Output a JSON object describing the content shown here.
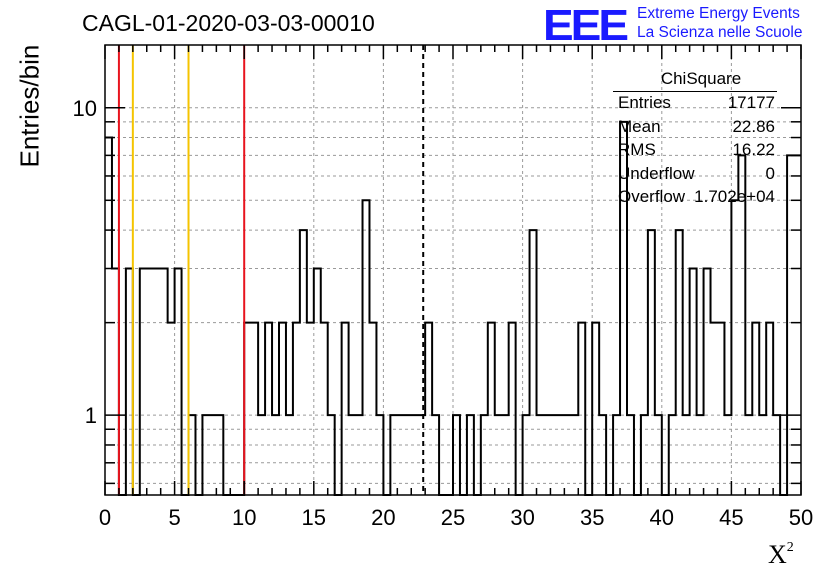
{
  "title": "CAGL-01-2020-03-03-00010",
  "logo": {
    "mark": "EEE",
    "line1": "Extreme Energy Events",
    "line2": "La Scienza nelle Scuole",
    "color": "#1a1aff"
  },
  "stats_box": {
    "name": "ChiSquare",
    "rows": [
      {
        "key": "Entries",
        "value": "17177"
      },
      {
        "key": "Mean",
        "value": "22.86"
      },
      {
        "key": "RMS",
        "value": "16.22"
      },
      {
        "key": "Underflow",
        "value": "0"
      },
      {
        "key": "Overflow",
        "value": "1.702e+04"
      }
    ]
  },
  "chart_data": {
    "type": "histogram",
    "title": "CAGL-01-2020-03-03-00010",
    "xlabel": "X²",
    "ylabel": "Entries/bin",
    "xlim": [
      0,
      50
    ],
    "ylim": [
      0.55,
      16
    ],
    "y_scale": "log",
    "grid": true,
    "bin_width": 0.5,
    "x_ticks": [
      0,
      5,
      10,
      15,
      20,
      25,
      30,
      35,
      40,
      45,
      50
    ],
    "y_ticks": [
      1,
      10
    ],
    "counts": [
      8,
      3,
      0,
      3,
      0,
      3,
      3,
      3,
      3,
      2,
      3,
      0,
      1,
      0,
      1,
      1,
      1,
      0,
      0,
      0,
      2,
      2,
      1,
      2,
      1,
      2,
      1,
      2,
      4,
      2,
      3,
      2,
      1,
      0,
      2,
      1,
      1,
      5,
      2,
      1,
      0,
      1,
      1,
      1,
      1,
      1,
      2,
      1,
      0,
      0,
      1,
      0,
      1,
      0,
      1,
      2,
      1,
      1,
      2,
      0,
      1,
      4,
      1,
      1,
      1,
      1,
      1,
      1,
      2,
      0,
      2,
      1,
      0,
      1,
      9,
      1,
      0,
      1,
      4,
      1,
      0,
      1,
      4,
      1,
      3,
      1,
      3,
      2,
      2,
      1,
      5,
      7,
      1,
      2,
      1,
      2,
      1,
      0,
      7,
      7
    ],
    "vertical_lines": [
      {
        "x": 1,
        "color": "#e8141e",
        "style": "solid"
      },
      {
        "x": 2,
        "color": "#f5c400",
        "style": "solid"
      },
      {
        "x": 6,
        "color": "#f5c400",
        "style": "solid"
      },
      {
        "x": 10,
        "color": "#e8141e",
        "style": "solid"
      },
      {
        "x": 22.86,
        "color": "#000000",
        "style": "dashed"
      }
    ]
  }
}
